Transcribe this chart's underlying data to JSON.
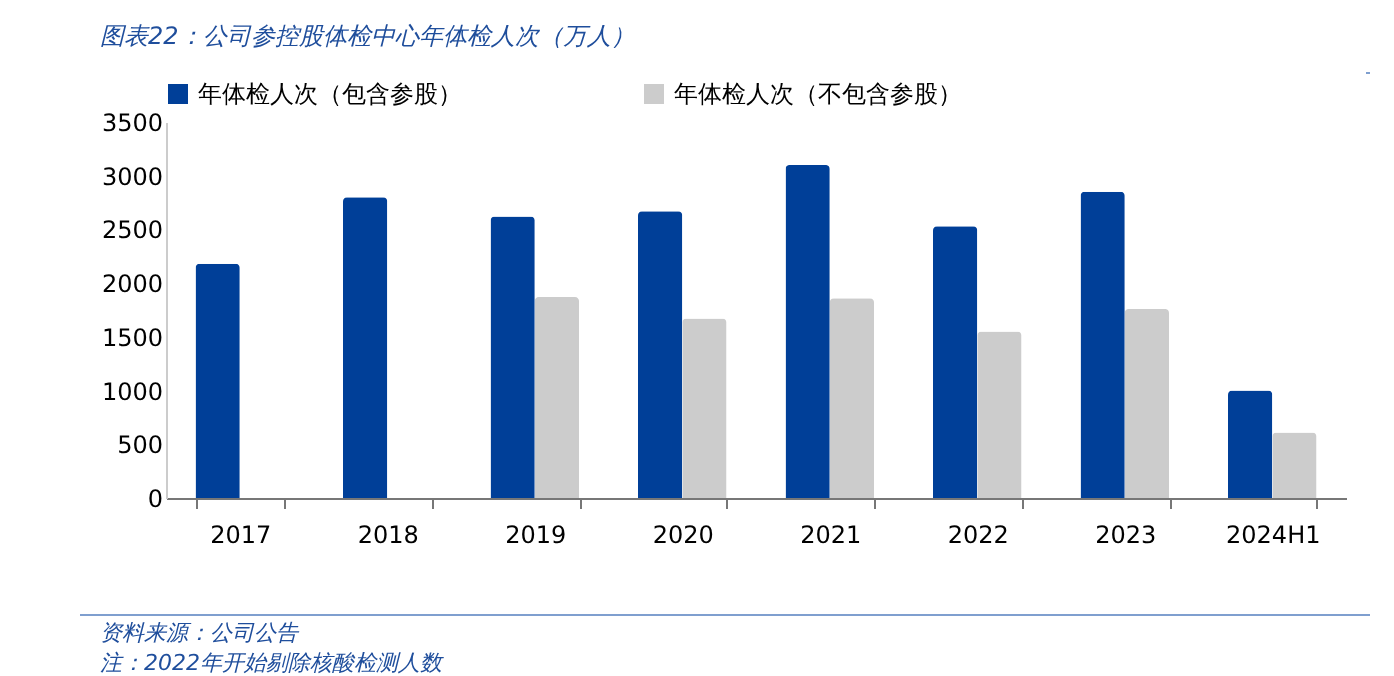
{
  "chart_data": {
    "type": "bar",
    "title": "图表22：公司参控股体检中心年体检人次（万人）",
    "categories": [
      "2017",
      "2018",
      "2019",
      "2020",
      "2021",
      "2022",
      "2023",
      "2024H1"
    ],
    "series": [
      {
        "name": "年体检人次（包含参股）",
        "color": "#003f98",
        "values": [
          2180,
          2800,
          2620,
          2670,
          3100,
          2530,
          2850,
          1000
        ]
      },
      {
        "name": "年体检人次（不包含参股）",
        "color": "#cccccc",
        "values": [
          null,
          null,
          1870,
          1670,
          1860,
          1550,
          1760,
          610
        ]
      }
    ],
    "ylim": [
      0,
      3500
    ],
    "yticks": [
      0,
      500,
      1000,
      1500,
      2000,
      2500,
      3000,
      3500
    ],
    "grid": false,
    "legend": "top",
    "annotations": [
      "资料来源：公司公告",
      "注：2022年开始剔除核酸检测人数"
    ]
  }
}
